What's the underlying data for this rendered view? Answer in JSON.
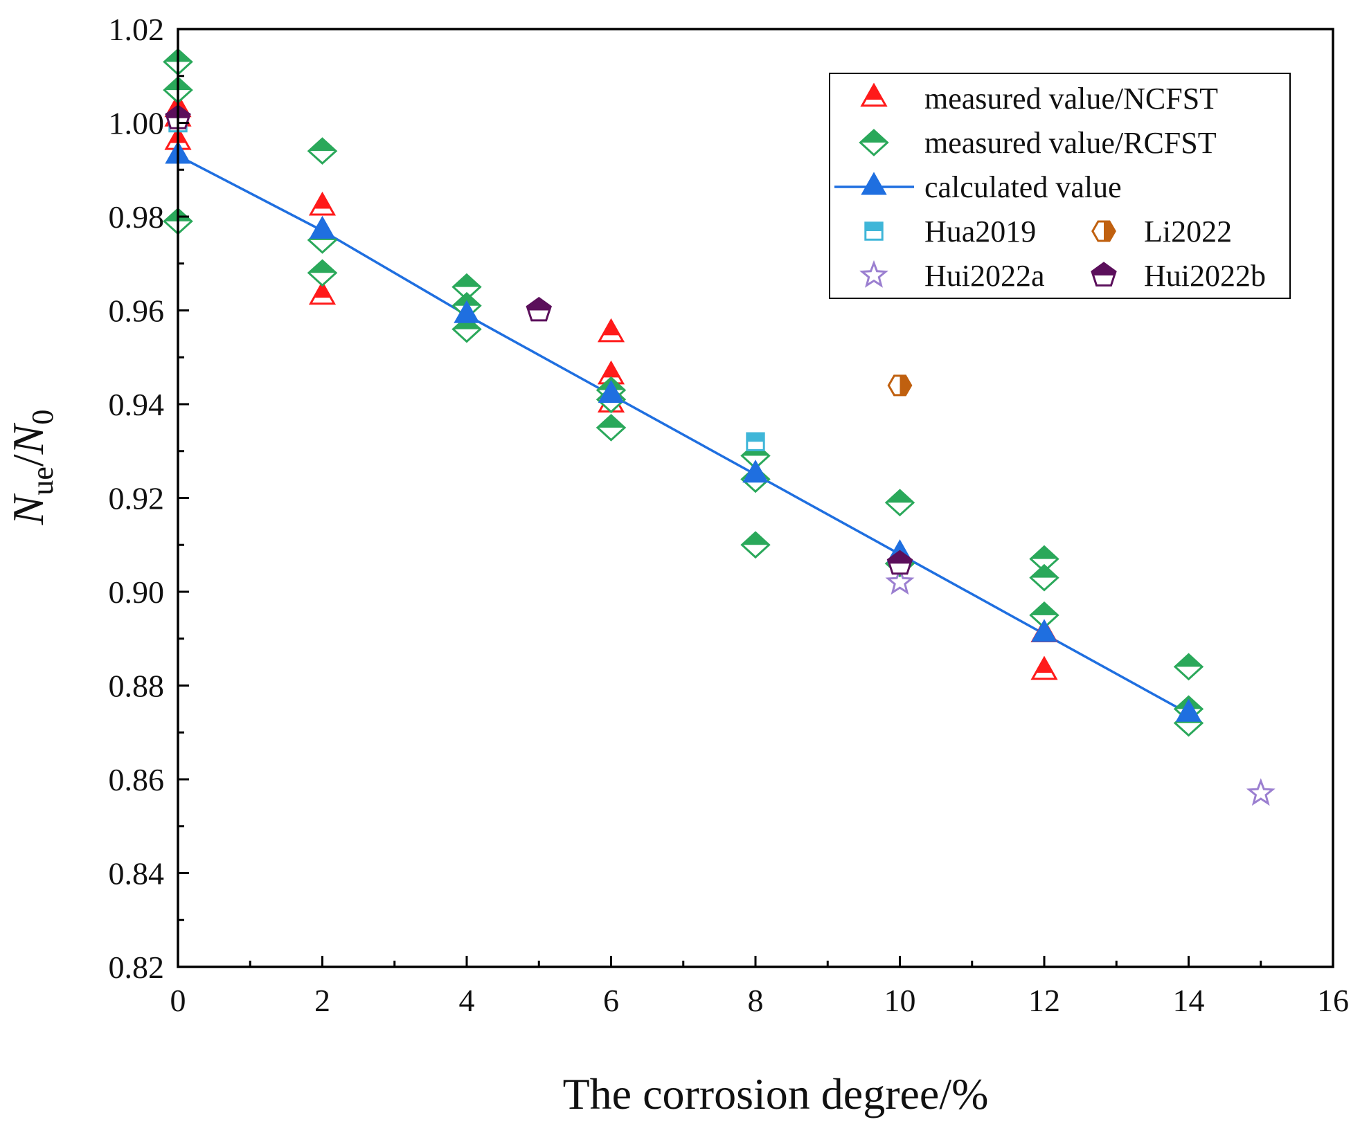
{
  "chart_data": {
    "type": "scatter",
    "xlabel": "The corrosion degree/%",
    "ylabel": {
      "main": "N",
      "sub1": "ue",
      "slash": "/",
      "main2": "N",
      "sub2": "0"
    },
    "xlim": [
      0,
      16
    ],
    "ylim": [
      0.82,
      1.02
    ],
    "x_ticks": [
      0,
      2,
      4,
      6,
      8,
      10,
      12,
      14,
      16
    ],
    "x_tick_labels": [
      "0",
      "2",
      "4",
      "6",
      "8",
      "10",
      "12",
      "14",
      "16"
    ],
    "y_ticks": [
      0.82,
      0.84,
      0.86,
      0.88,
      0.9,
      0.92,
      0.94,
      0.96,
      0.98,
      1.0,
      1.02
    ],
    "y_tick_labels": [
      "0.82",
      "0.84",
      "0.86",
      "0.88",
      "0.90",
      "0.92",
      "0.94",
      "0.96",
      "0.98",
      "1.00",
      "1.02"
    ],
    "legend_position": "top-right",
    "series": [
      {
        "name": "measured value/NCFST",
        "marker": "triangle",
        "color": "#ff1a1a",
        "points": [
          [
            0,
            1.003
          ],
          [
            0,
            1.001
          ],
          [
            0,
            0.996
          ],
          [
            2,
            0.982
          ],
          [
            2,
            0.963
          ],
          [
            6,
            0.955
          ],
          [
            6,
            0.946
          ],
          [
            6,
            0.94
          ],
          [
            12,
            0.891
          ],
          [
            12,
            0.883
          ]
        ]
      },
      {
        "name": "measured value/RCFST",
        "marker": "diamond",
        "color": "#2aa85a",
        "points": [
          [
            0,
            1.013
          ],
          [
            0,
            1.007
          ],
          [
            0,
            0.979
          ],
          [
            2,
            0.994
          ],
          [
            2,
            0.975
          ],
          [
            2,
            0.968
          ],
          [
            4,
            0.965
          ],
          [
            4,
            0.961
          ],
          [
            4,
            0.956
          ],
          [
            6,
            0.943
          ],
          [
            6,
            0.941
          ],
          [
            6,
            0.935
          ],
          [
            8,
            0.929
          ],
          [
            8,
            0.924
          ],
          [
            8,
            0.91
          ],
          [
            10,
            0.919
          ],
          [
            10,
            0.906
          ],
          [
            12,
            0.907
          ],
          [
            12,
            0.903
          ],
          [
            12,
            0.895
          ],
          [
            14,
            0.884
          ],
          [
            14,
            0.875
          ],
          [
            14,
            0.872
          ]
        ]
      },
      {
        "name": "calculated value",
        "marker": "triangle-filled-line",
        "color": "#1f6fe0",
        "points": [
          [
            0,
            0.993
          ],
          [
            2,
            0.977
          ],
          [
            4,
            0.959
          ],
          [
            6,
            0.942
          ],
          [
            8,
            0.925
          ],
          [
            10,
            0.908
          ],
          [
            12,
            0.891
          ],
          [
            14,
            0.874
          ]
        ]
      },
      {
        "name": "Hua2019",
        "marker": "square",
        "color": "#3fb6d8",
        "points": [
          [
            0,
            1.0
          ],
          [
            8,
            0.932
          ]
        ]
      },
      {
        "name": "Li2022",
        "marker": "hexagon",
        "color": "#c0600f",
        "points": [
          [
            10,
            0.944
          ]
        ]
      },
      {
        "name": "Hui2022a",
        "marker": "star",
        "color": "#9b7fd0",
        "points": [
          [
            10,
            0.902
          ],
          [
            15,
            0.857
          ]
        ]
      },
      {
        "name": "Hui2022b",
        "marker": "pentagon",
        "color": "#5b0f5b",
        "points": [
          [
            5,
            0.96
          ],
          [
            10,
            0.906
          ],
          [
            0,
            1.001
          ]
        ]
      }
    ]
  }
}
